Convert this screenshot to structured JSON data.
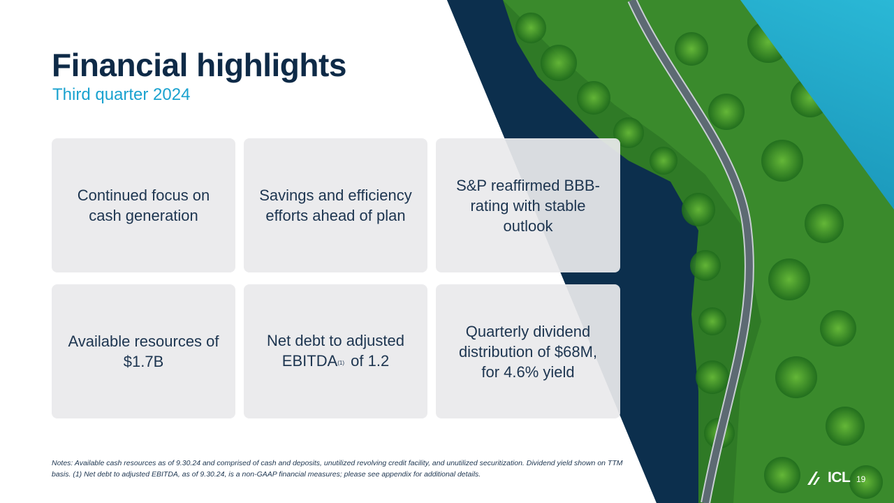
{
  "slide": {
    "title": "Financial highlights",
    "subtitle": "Third quarter 2024",
    "page_number": "19"
  },
  "cards": [
    {
      "text": "Continued focus on cash generation"
    },
    {
      "text": "Savings and efficiency efforts ahead of plan"
    },
    {
      "text": "S&P reaffirmed BBB- rating with stable outlook"
    },
    {
      "text": "Available resources of $1.7B"
    },
    {
      "text_before": "Net debt to adjusted EBITDA",
      "superscript": "(1)",
      "text_after": " of 1.2"
    },
    {
      "text": "Quarterly dividend distribution of $68M, for 4.6% yield"
    }
  ],
  "notes": "Notes: Available cash resources as of 9.30.24 and comprised of cash and deposits, unutilized revolving credit facility, and unutilized securitization. Dividend yield shown on TTM basis. (1) Net debt to adjusted EBITDA, as of 9.30.24, is a non-GAAP financial measures; please see appendix for additional details.",
  "logo": {
    "text": "ICL"
  },
  "colors": {
    "title": "#0e2a47",
    "subtitle": "#1aa2cf",
    "card_background": "#e9eaec",
    "body_text": "#1d3550",
    "teal_accent": "#2ab8d6"
  }
}
